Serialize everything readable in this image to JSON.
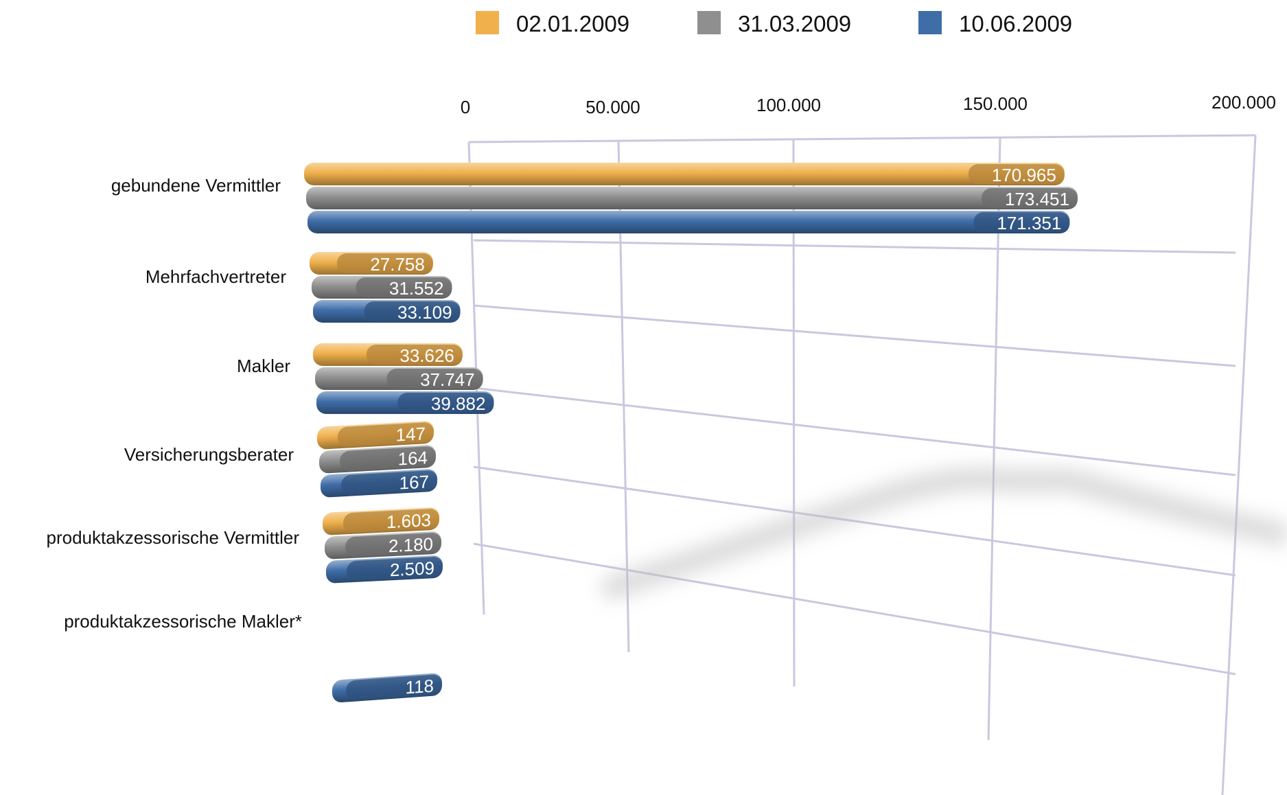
{
  "chart_data": {
    "type": "bar",
    "orientation": "horizontal",
    "title": "",
    "xlabel": "",
    "ylabel": "",
    "xlim": [
      0,
      200000
    ],
    "grid": true,
    "legend_position": "top",
    "ticks": [
      "0",
      "50.000",
      "100.000",
      "150.000",
      "200.000"
    ],
    "categories": [
      "gebundene  Vermittler",
      "Mehrfachvertreter",
      "Makler",
      "Versicherungsberater",
      "produktakzessorische Vermittler",
      "produktakzessorische Makler*"
    ],
    "series": [
      {
        "name": "02.01.2009",
        "color": "#f0b04c",
        "values": [
          170965,
          27758,
          33626,
          147,
          1603,
          null
        ],
        "labels": [
          "170.965",
          "27.758",
          "33.626",
          "147",
          "1.603",
          ""
        ]
      },
      {
        "name": "31.03.2009",
        "color": "#8f8f8f",
        "values": [
          173451,
          31552,
          37747,
          164,
          2180,
          null
        ],
        "labels": [
          "173.451",
          "31.552",
          "37.747",
          "164",
          "2.180",
          ""
        ]
      },
      {
        "name": "10.06.2009",
        "color": "#3f6da8",
        "values": [
          171351,
          33109,
          39882,
          167,
          2509,
          118
        ],
        "labels": [
          "171.351",
          "33.109",
          "39.882",
          "167",
          "2.509",
          "118"
        ]
      }
    ]
  }
}
